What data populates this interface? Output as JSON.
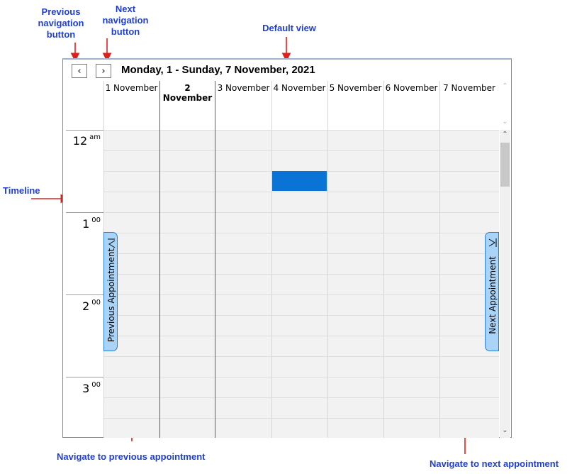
{
  "annotations": {
    "previous_navigation_button": "Previous navigation button",
    "next_navigation_button": "Next navigation button",
    "default_view": "Default view",
    "timeline": "Timeline",
    "navigate_previous": "Navigate to previous appointment",
    "navigate_next": "Navigate to next appointment"
  },
  "scheduler": {
    "prev_button": "‹",
    "next_button": "›",
    "title": "Monday, 1 - Sunday, 7 November, 2021",
    "days": [
      "1 November",
      "2 November",
      "3 November",
      "4 November",
      "5 November",
      "6 November",
      "7 November"
    ],
    "today_index": 1,
    "hours": [
      {
        "num": "12",
        "sup": "am"
      },
      {
        "num": "1",
        "sup": "00"
      },
      {
        "num": "2",
        "sup": "00"
      },
      {
        "num": "3",
        "sup": "00"
      }
    ],
    "previous_appointment_label": "Previous Appointment",
    "next_appointment_label": "Next Appointment"
  },
  "colors": {
    "annotation_text": "#1f3fd3",
    "arrow": "#e0201b",
    "appointment": "#0a74d6",
    "today_border": "#1a6fc4",
    "tab_fill": "#a9d3f7"
  }
}
